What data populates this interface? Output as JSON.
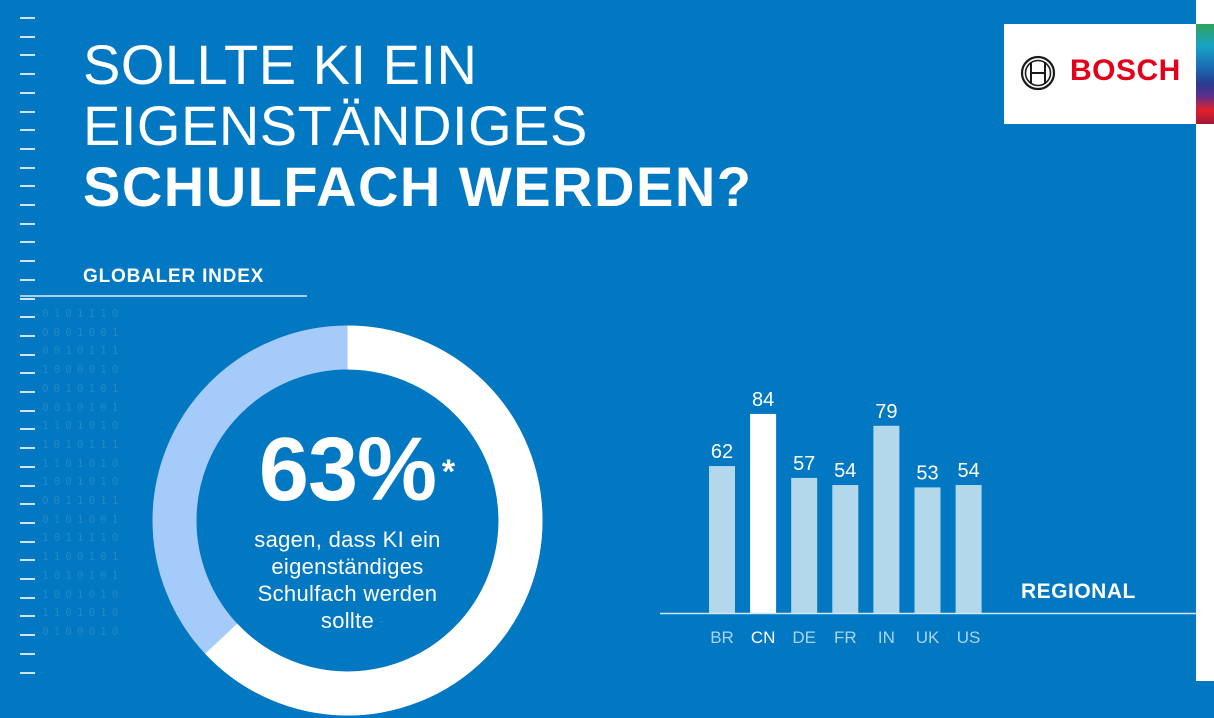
{
  "header": {
    "title_line1": "SOLLTE KI EIN",
    "title_line2": "EIGENSTÄNDIGES",
    "title_line3": "SCHULFACH WERDEN?"
  },
  "brand": {
    "name": "BOSCH",
    "color": "#e2001a",
    "icon": "bosch-armature-icon"
  },
  "colors": {
    "background": "#0178c1",
    "bar": "#b3d8ec",
    "highlight": "#ffffff",
    "donut_light": "#a5cbfb"
  },
  "global": {
    "label": "GLOBALER INDEX",
    "percent": 63,
    "value_text": "63%",
    "footnote_mark": "*",
    "description_lines": [
      "sagen, dass KI ein",
      "eigenständiges",
      "Schulfach werden",
      "sollte"
    ]
  },
  "binary_rows": [
    "0101110",
    "0001001",
    "0010111",
    "1000010",
    "0010101",
    "0010101",
    "1101010",
    "1010111",
    "1101010",
    "1001010",
    "0011011",
    "0101001",
    "1011110",
    "1100101",
    "1010101",
    "1001010",
    "1101010",
    "0100010"
  ],
  "chart_data": {
    "type": "bar",
    "title": "REGIONAL",
    "categories": [
      "BR",
      "CN",
      "DE",
      "FR",
      "IN",
      "UK",
      "US"
    ],
    "values": [
      62,
      84,
      57,
      54,
      79,
      53,
      54
    ],
    "highlight": "CN",
    "ylim": [
      0,
      100
    ],
    "grid": false,
    "xlabel": "",
    "ylabel": ""
  }
}
